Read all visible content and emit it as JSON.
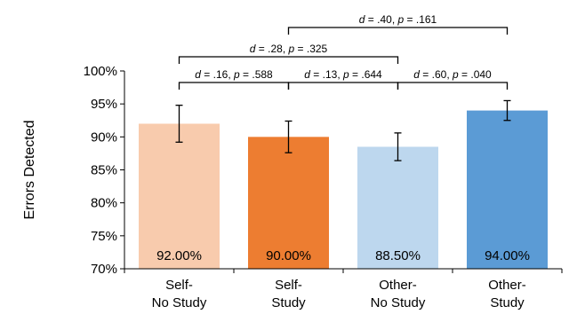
{
  "chart_data": {
    "type": "bar",
    "categories": [
      [
        "Self-",
        "No Study"
      ],
      [
        "Self-",
        "Study"
      ],
      [
        "Other-",
        "No Study"
      ],
      [
        "Other-",
        "Study"
      ]
    ],
    "values": [
      92.0,
      90.0,
      88.5,
      94.0
    ],
    "value_labels": [
      "92.00%",
      "90.00%",
      "88.50%",
      "94.00%"
    ],
    "error_bars": [
      [
        89.2,
        94.8
      ],
      [
        87.6,
        92.4
      ],
      [
        86.4,
        90.6
      ],
      [
        92.5,
        95.5
      ]
    ],
    "bar_colors": [
      "#F8CBAD",
      "#ED7D31",
      "#BDD7EE",
      "#5B9BD5"
    ],
    "ylabel": "Errors Detected",
    "ylim": [
      70,
      100
    ],
    "yticks": [
      70,
      75,
      80,
      85,
      90,
      95,
      100
    ],
    "ytick_labels": [
      "70%",
      "75%",
      "80%",
      "85%",
      "90%",
      "95%",
      "100%"
    ],
    "grid": false,
    "comparisons": [
      {
        "from": 0,
        "to": 1,
        "level": 1,
        "d": ".16",
        "p": ".588"
      },
      {
        "from": 1,
        "to": 2,
        "level": 1,
        "d": ".13",
        "p": ".644"
      },
      {
        "from": 2,
        "to": 3,
        "level": 1,
        "d": ".60",
        "p": ".040"
      },
      {
        "from": 0,
        "to": 2,
        "level": 2,
        "d": ".28",
        "p": ".325"
      },
      {
        "from": 1,
        "to": 3,
        "level": 3,
        "d": ".40",
        "p": ".161"
      }
    ]
  }
}
